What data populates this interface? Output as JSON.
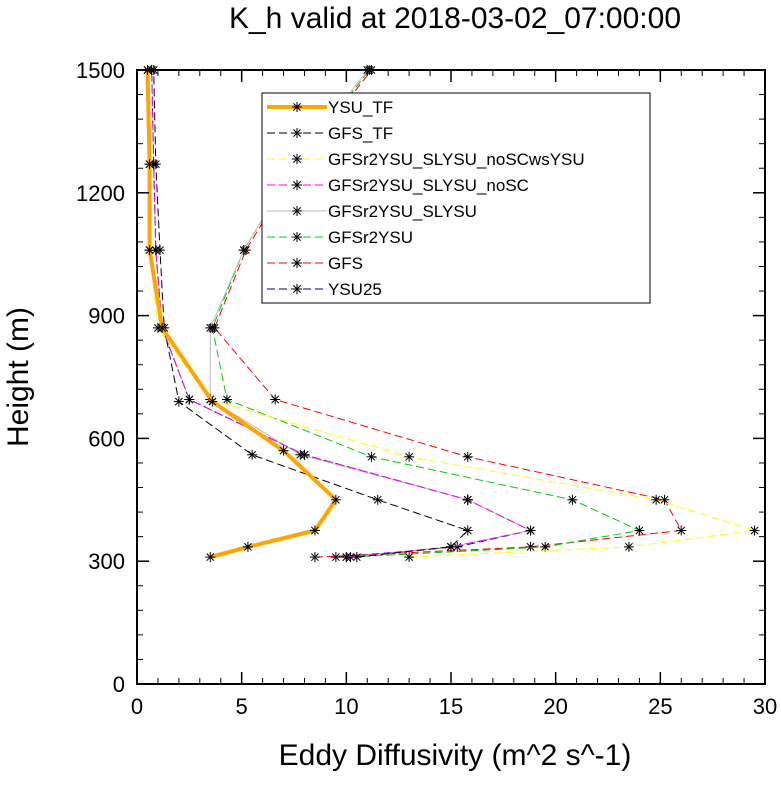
{
  "chart_data": {
    "type": "line",
    "title": "K_h valid at 2018-03-02_07:00:00",
    "xlabel": "Eddy Diffusivity (m^2 s^-1)",
    "ylabel": "Height (m)",
    "xlim": [
      0,
      30
    ],
    "ylim": [
      0,
      1500
    ],
    "xticks": [
      0,
      5,
      10,
      15,
      20,
      25,
      30
    ],
    "yticks": [
      0,
      300,
      600,
      900,
      1200,
      1500
    ],
    "grid": false,
    "legend_position": "top-center",
    "series": [
      {
        "name": "YSU_TF",
        "color": "#FFA500",
        "style": "solid",
        "points": [
          [
            3.5,
            310
          ],
          [
            5.3,
            335
          ],
          [
            8.5,
            375
          ],
          [
            9.5,
            450
          ],
          [
            7.0,
            570
          ],
          [
            3.6,
            690
          ],
          [
            1.2,
            870
          ],
          [
            0.6,
            1060
          ],
          [
            0.6,
            1270
          ],
          [
            0.5,
            1500
          ]
        ]
      },
      {
        "name": "GFS_TF",
        "color": "#000000",
        "style": "dashed",
        "points": [
          [
            10.5,
            310
          ],
          [
            15.0,
            335
          ],
          [
            15.8,
            375
          ],
          [
            11.5,
            450
          ],
          [
            5.5,
            560
          ],
          [
            2.0,
            690
          ],
          [
            1.3,
            870
          ],
          [
            1.1,
            1060
          ],
          [
            0.9,
            1270
          ],
          [
            0.8,
            1500
          ]
        ]
      },
      {
        "name": "GFSr2YSU_SLYSU_noSCwsYSU",
        "color": "#FFFF00",
        "style": "dashed",
        "points": [
          [
            13.0,
            310
          ],
          [
            23.5,
            335
          ],
          [
            29.5,
            375
          ],
          [
            24.8,
            450
          ],
          [
            13.0,
            555
          ],
          [
            3.5,
            695
          ],
          [
            1.0,
            870
          ],
          [
            0.6,
            1060
          ],
          [
            0.6,
            1270
          ],
          [
            0.5,
            1500
          ]
        ]
      },
      {
        "name": "GFSr2YSU_SLYSU_noSC",
        "color": "#FF00FF",
        "style": "dashed",
        "points": [
          [
            10.0,
            310
          ],
          [
            15.0,
            335
          ],
          [
            18.8,
            375
          ],
          [
            15.8,
            450
          ],
          [
            8.0,
            560
          ],
          [
            2.5,
            695
          ],
          [
            1.2,
            870
          ],
          [
            0.9,
            1060
          ],
          [
            0.8,
            1270
          ],
          [
            0.7,
            1500
          ]
        ]
      },
      {
        "name": "GFSr2YSU_SLYSU",
        "color": "#BBBBBB",
        "style": "solid",
        "points": [
          [
            10.0,
            310
          ],
          [
            15.0,
            335
          ],
          [
            18.8,
            375
          ],
          [
            15.8,
            450
          ],
          [
            7.8,
            560
          ],
          [
            3.5,
            695
          ],
          [
            3.5,
            870
          ],
          [
            5.1,
            1060
          ],
          [
            7.6,
            1270
          ],
          [
            11.0,
            1500
          ]
        ]
      },
      {
        "name": "GFSr2YSU",
        "color": "#00CC00",
        "style": "dashed",
        "points": [
          [
            10.2,
            310
          ],
          [
            19.5,
            335
          ],
          [
            24.0,
            375
          ],
          [
            20.8,
            450
          ],
          [
            11.2,
            555
          ],
          [
            4.3,
            695
          ],
          [
            3.6,
            870
          ],
          [
            5.1,
            1060
          ],
          [
            7.6,
            1270
          ],
          [
            11.1,
            1500
          ]
        ]
      },
      {
        "name": "GFS",
        "color": "#FF0000",
        "style": "dashed",
        "points": [
          [
            8.5,
            310
          ],
          [
            18.8,
            335
          ],
          [
            26.0,
            375
          ],
          [
            25.2,
            450
          ],
          [
            15.8,
            555
          ],
          [
            6.6,
            695
          ],
          [
            3.7,
            870
          ],
          [
            5.2,
            1060
          ],
          [
            7.7,
            1270
          ],
          [
            11.2,
            1500
          ]
        ]
      },
      {
        "name": "YSU25",
        "color": "#000080",
        "style": "dashed",
        "points": [
          [
            9.5,
            310
          ],
          [
            15.3,
            335
          ],
          [
            18.8,
            375
          ],
          [
            15.8,
            450
          ],
          [
            8.0,
            560
          ],
          [
            2.5,
            695
          ],
          [
            1.2,
            870
          ],
          [
            0.9,
            1060
          ],
          [
            0.8,
            1270
          ],
          [
            0.7,
            1500
          ]
        ]
      }
    ]
  }
}
